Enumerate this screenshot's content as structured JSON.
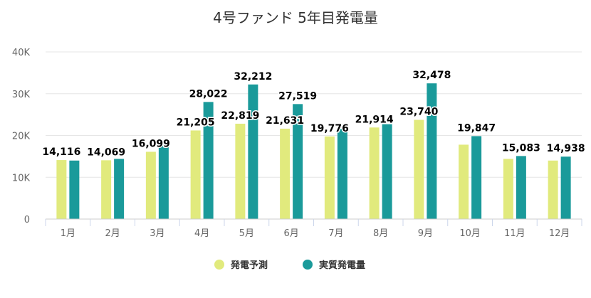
{
  "chart_data": {
    "type": "bar",
    "title": "4号ファンド 5年目発電量",
    "categories": [
      "1月",
      "2月",
      "3月",
      "4月",
      "5月",
      "6月",
      "7月",
      "8月",
      "9月",
      "10月",
      "11月",
      "12月"
    ],
    "series": [
      {
        "name": "発電予測",
        "color": "#e1ea7d",
        "values": [
          14116,
          14069,
          16099,
          21205,
          22819,
          21631,
          19776,
          21914,
          23740,
          17800,
          14400,
          14000
        ]
      },
      {
        "name": "実質発電量",
        "color": "#1a9a9a",
        "values": [
          14000,
          14400,
          17800,
          28022,
          32212,
          27519,
          21600,
          22700,
          32478,
          19847,
          15083,
          14938
        ]
      }
    ],
    "data_labels": [
      {
        "text": "14,116",
        "series": 0,
        "index": 0
      },
      {
        "text": "14,069",
        "series": 0,
        "index": 1
      },
      {
        "text": "16,099",
        "series": 0,
        "index": 2
      },
      {
        "text": "21,205",
        "series": 0,
        "index": 3
      },
      {
        "text": "28,022",
        "series": 1,
        "index": 3
      },
      {
        "text": "22,819",
        "series": 0,
        "index": 4
      },
      {
        "text": "32,212",
        "series": 1,
        "index": 4
      },
      {
        "text": "21,631",
        "series": 0,
        "index": 5
      },
      {
        "text": "27,519",
        "series": 1,
        "index": 5
      },
      {
        "text": "19,776",
        "series": 0,
        "index": 6
      },
      {
        "text": "21,914",
        "series": 0,
        "index": 7
      },
      {
        "text": "23,740",
        "series": 0,
        "index": 8
      },
      {
        "text": "32,478",
        "series": 1,
        "index": 8
      },
      {
        "text": "19,847",
        "series": 1,
        "index": 9
      },
      {
        "text": "15,083",
        "series": 1,
        "index": 10
      },
      {
        "text": "14,938",
        "series": 1,
        "index": 11
      }
    ],
    "ylim": [
      0,
      40000
    ],
    "yticks": [
      {
        "value": 0,
        "label": "0"
      },
      {
        "value": 10000,
        "label": "10K"
      },
      {
        "value": 20000,
        "label": "20K"
      },
      {
        "value": 30000,
        "label": "30K"
      },
      {
        "value": 40000,
        "label": "40K"
      }
    ],
    "grid": true,
    "legend_position": "bottom-center",
    "xlabel": "",
    "ylabel": ""
  }
}
